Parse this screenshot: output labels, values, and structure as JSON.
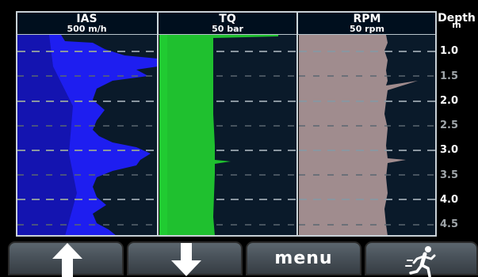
{
  "tracks": [
    {
      "title": "IAS",
      "unit": "500 m/h"
    },
    {
      "title": "TQ",
      "unit": "50 bar"
    },
    {
      "title": "RPM",
      "unit": "50 rpm"
    }
  ],
  "depth_header": {
    "title": "Depth",
    "unit": "m"
  },
  "depth_ticks": [
    "1.0",
    "1.5",
    "2.0",
    "2.5",
    "3.0",
    "3.5",
    "4.0",
    "4.5"
  ],
  "buttons": {
    "up": "arrow-up-icon",
    "down": "arrow-down-icon",
    "menu": "menu",
    "exit": "running-exit-icon"
  },
  "colors": {
    "ias": "#1e1ef0",
    "tq": "#1fc02f",
    "rpm": "#a08c8e",
    "grid": "#8a96a0",
    "background": "#0a1a2a"
  }
}
